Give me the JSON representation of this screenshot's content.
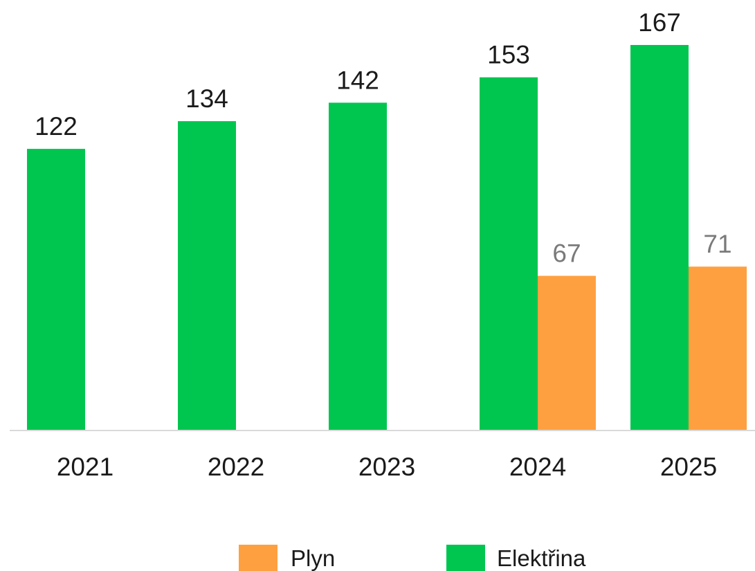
{
  "chart_data": {
    "type": "bar",
    "categories": [
      "2021",
      "2022",
      "2023",
      "2024",
      "2025"
    ],
    "series": [
      {
        "name": "Elektřina",
        "color": "#00c650",
        "label_color": "#1a1a1a",
        "values": [
          122,
          134,
          142,
          153,
          167
        ]
      },
      {
        "name": "Plyn",
        "color": "#ffa040",
        "label_color": "#7a7a7a",
        "values": [
          null,
          null,
          null,
          67,
          71
        ]
      }
    ],
    "title": "",
    "xlabel": "",
    "ylabel": "",
    "ylim": [
      0,
      167
    ],
    "grid": false,
    "legend": {
      "position": "bottom",
      "order": [
        "Plyn",
        "Elektřina"
      ]
    },
    "axis_color": "#d9d9d9"
  }
}
